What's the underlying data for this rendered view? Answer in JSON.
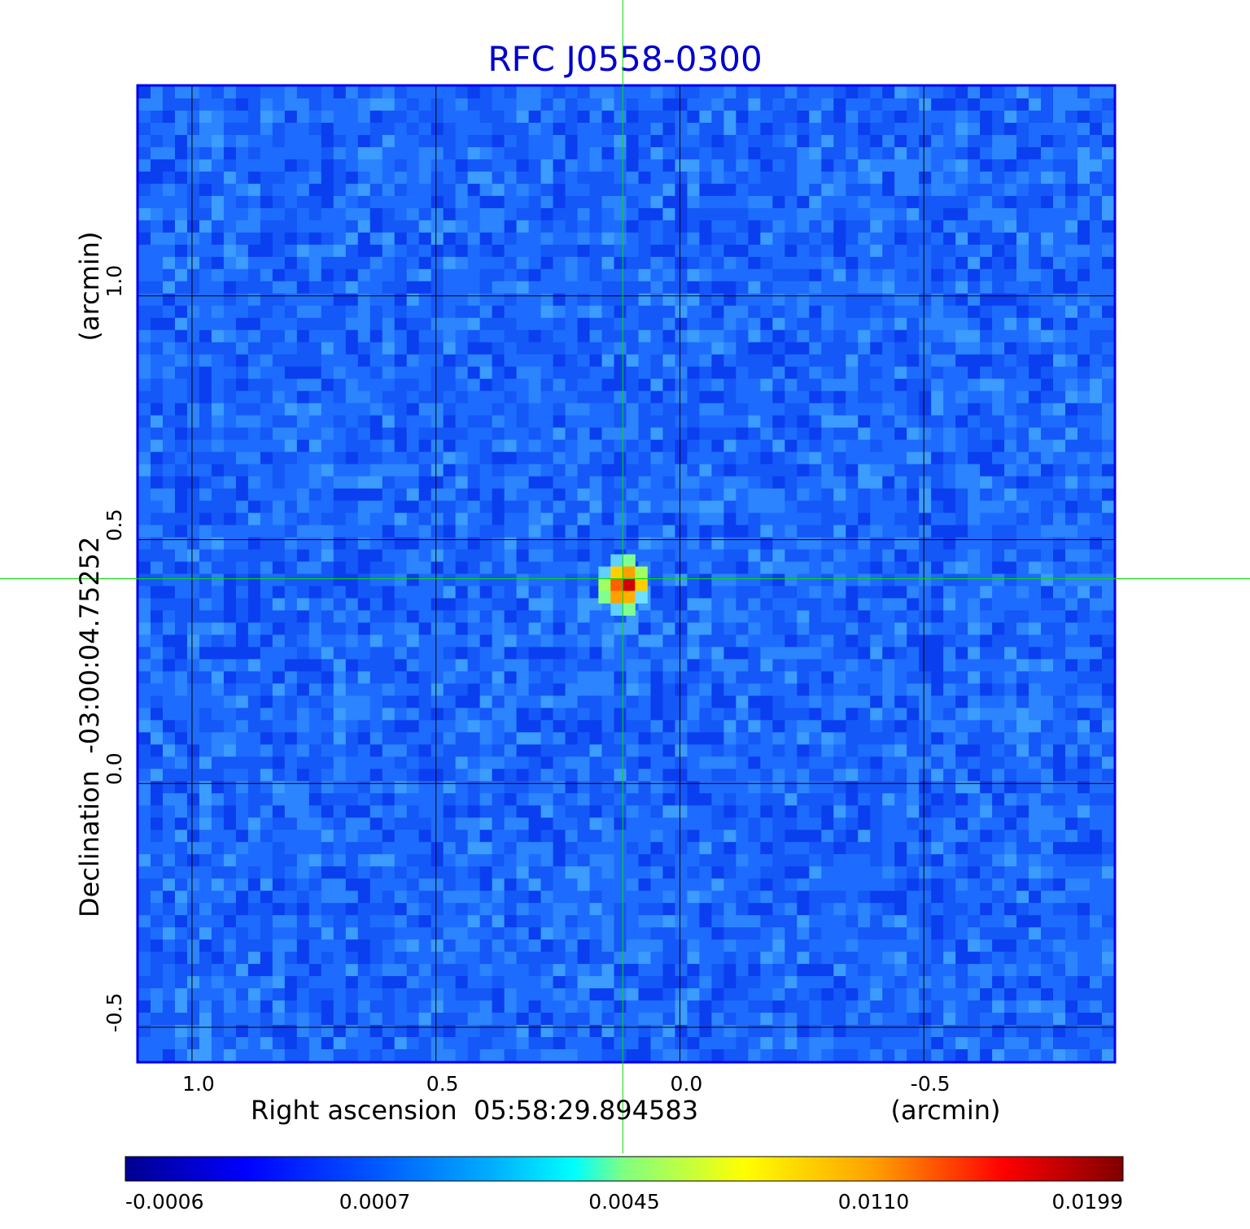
{
  "chart_data": {
    "type": "heatmap",
    "title": "RFC J0558-0300",
    "xlabel": "Right ascension  05:58:29.894583",
    "xunit": "(arcmin)",
    "ylabel": "Declination  -03:00:04.75252",
    "yunit": "(arcmin)",
    "x_ticks": [
      "1.0",
      "0.5",
      "0.0",
      "-0.5"
    ],
    "x_tick_values": [
      1.0,
      0.5,
      0.0,
      -0.5
    ],
    "y_ticks": [
      "1.0",
      "0.5",
      "0.0",
      "-0.5"
    ],
    "y_tick_values": [
      1.0,
      0.5,
      0.0,
      -0.5
    ],
    "xlim": [
      1.11,
      -0.89
    ],
    "ylim": [
      -0.57,
      1.43
    ],
    "grid": true,
    "crosshair": {
      "x": 0.117,
      "y": 0.42
    },
    "source_peak": {
      "x": 0.117,
      "y": 0.42,
      "value": 0.0199
    },
    "colorbar": {
      "labels": [
        "-0.0006",
        "0.0007",
        "0.0045",
        "0.0110",
        "0.0199"
      ],
      "values": [
        -0.0006,
        0.0007,
        0.0045,
        0.011,
        0.0199
      ],
      "colormap": "jet"
    },
    "colors": {
      "title": "#0000cc",
      "frame": "#0000ee",
      "crosshair": "#00dd00",
      "background_level": "#1a66ff"
    }
  }
}
